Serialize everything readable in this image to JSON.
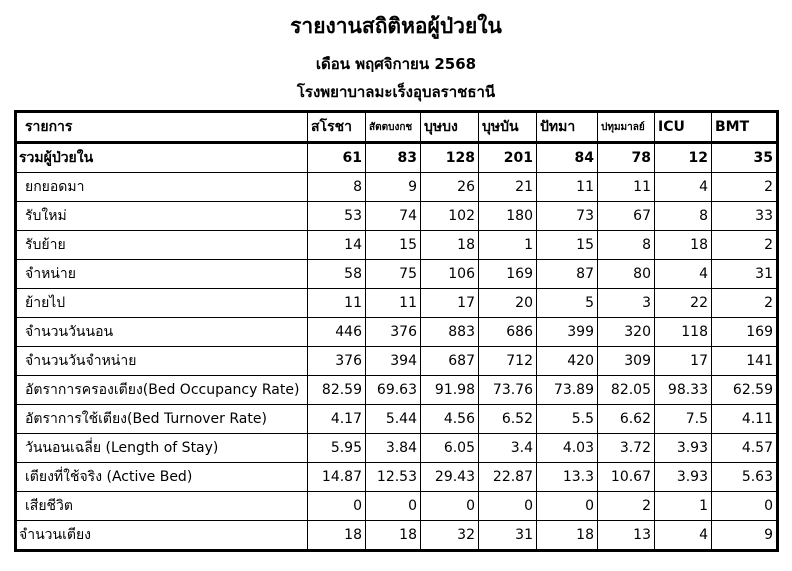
{
  "title": "รายงานสถิติหอผู้ป่วยใน",
  "subtitle": "เดือน พฤศจิกายน 2568",
  "hospital": "โรงพยาบาลมะเร็งอุบลราชธานี",
  "table": {
    "header_label": "รายการ",
    "columns": [
      "สโรชา",
      "สัตตบงกช",
      "บุษบง",
      "บุษบัน",
      "ปัทมา",
      "ปทุมมาลย์",
      "ICU",
      "BMT"
    ],
    "rows": [
      {
        "label": "รวมผู้ป่วยใน",
        "values": [
          "61",
          "83",
          "128",
          "201",
          "84",
          "78",
          "12",
          "35"
        ]
      },
      {
        "label": "ยกยอดมา",
        "values": [
          "8",
          "9",
          "26",
          "21",
          "11",
          "11",
          "4",
          "2"
        ]
      },
      {
        "label": "รับใหม่",
        "values": [
          "53",
          "74",
          "102",
          "180",
          "73",
          "67",
          "8",
          "33"
        ]
      },
      {
        "label": "รับย้าย",
        "values": [
          "14",
          "15",
          "18",
          "1",
          "15",
          "8",
          "18",
          "2"
        ]
      },
      {
        "label": "จำหน่าย",
        "values": [
          "58",
          "75",
          "106",
          "169",
          "87",
          "80",
          "4",
          "31"
        ]
      },
      {
        "label": "ย้ายไป",
        "values": [
          "11",
          "11",
          "17",
          "20",
          "5",
          "3",
          "22",
          "2"
        ]
      },
      {
        "label": "จำนวนวันนอน",
        "values": [
          "446",
          "376",
          "883",
          "686",
          "399",
          "320",
          "118",
          "169"
        ]
      },
      {
        "label": "จำนวนวันจำหน่าย",
        "values": [
          "376",
          "394",
          "687",
          "712",
          "420",
          "309",
          "17",
          "141"
        ]
      },
      {
        "label": "อัตราการครองเตียง(Bed Occupancy Rate)",
        "values": [
          "82.59",
          "69.63",
          "91.98",
          "73.76",
          "73.89",
          "82.05",
          "98.33",
          "62.59"
        ]
      },
      {
        "label": "อัตราการใช้เตียง(Bed Turnover Rate)",
        "values": [
          "4.17",
          "5.44",
          "4.56",
          "6.52",
          "5.5",
          "6.62",
          "7.5",
          "4.11"
        ]
      },
      {
        "label": "วันนอนเฉลี่ย (Length of Stay)",
        "values": [
          "5.95",
          "3.84",
          "6.05",
          "3.4",
          "4.03",
          "3.72",
          "3.93",
          "4.57"
        ]
      },
      {
        "label": "เตียงที่ใช้จริง (Active Bed)",
        "values": [
          "14.87",
          "12.53",
          "29.43",
          "22.87",
          "13.3",
          "10.67",
          "3.93",
          "5.63"
        ]
      },
      {
        "label": "เสียชีวิต",
        "values": [
          "0",
          "0",
          "0",
          "0",
          "0",
          "2",
          "1",
          "0"
        ]
      },
      {
        "label": "จำนวนเตียง",
        "values": [
          "18",
          "18",
          "32",
          "31",
          "18",
          "13",
          "4",
          "9"
        ]
      }
    ]
  }
}
